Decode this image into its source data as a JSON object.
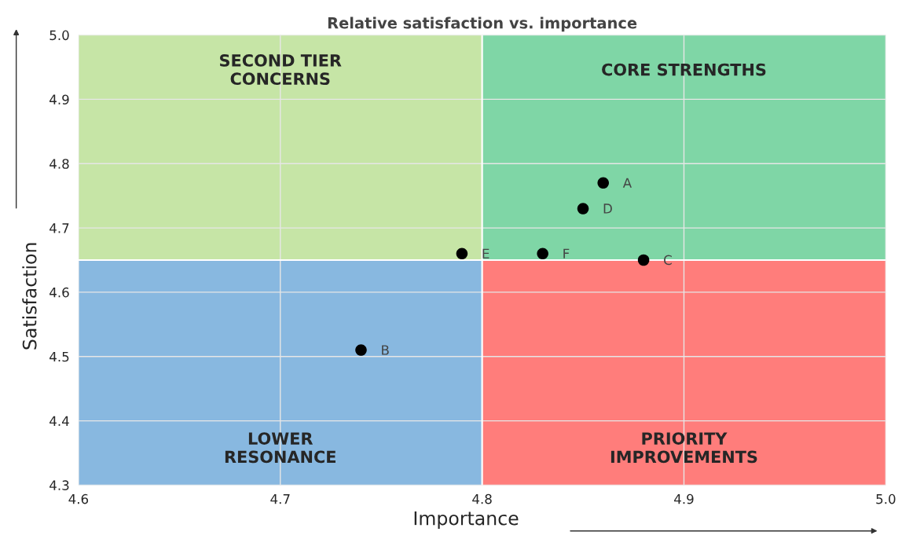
{
  "chart_data": {
    "type": "scatter",
    "title": "Relative satisfaction vs. importance",
    "xlabel": "Importance",
    "ylabel": "Satisfaction",
    "x": [
      4.86,
      4.74,
      4.88,
      4.85,
      4.79,
      4.83
    ],
    "series": [
      {
        "color": "#000000",
        "values": [
          4.77,
          4.51,
          4.65,
          4.73,
          4.66,
          4.66
        ]
      }
    ],
    "marker": "circle",
    "xlim": [
      4.6,
      5.0
    ],
    "xticks": [
      4.6,
      4.7,
      4.8,
      4.9,
      {
        "value": 5.0,
        "label": "5.0"
      }
    ],
    "ylim": [
      4.3,
      5.0
    ],
    "yticks": [
      4.3,
      4.4,
      4.5,
      4.6,
      4.7,
      4.8,
      4.9,
      {
        "value": 5.0,
        "label": "5.0"
      }
    ],
    "grid": true,
    "ref_lines": [
      {
        "axis": "x",
        "value": 4.8,
        "color": "#ffffff"
      },
      {
        "axis": "y",
        "value": 4.65,
        "color": "#ffffff"
      }
    ],
    "annotations": [
      {
        "text": "A",
        "x": 4.86,
        "y": 4.77
      },
      {
        "text": "B",
        "x": 4.74,
        "y": 4.51
      },
      {
        "text": "C",
        "x": 4.88,
        "y": 4.65
      },
      {
        "text": "D",
        "x": 4.85,
        "y": 4.73
      },
      {
        "text": "E",
        "x": 4.79,
        "y": 4.66
      },
      {
        "text": "F",
        "x": 4.83,
        "y": 4.66
      },
      "SECOND TIER\nCONCERNS",
      "CORE STRENGTHS",
      "LOWER\nRESONANCE",
      "PRIORITY\nIMPROVEMENTS"
    ]
  }
}
